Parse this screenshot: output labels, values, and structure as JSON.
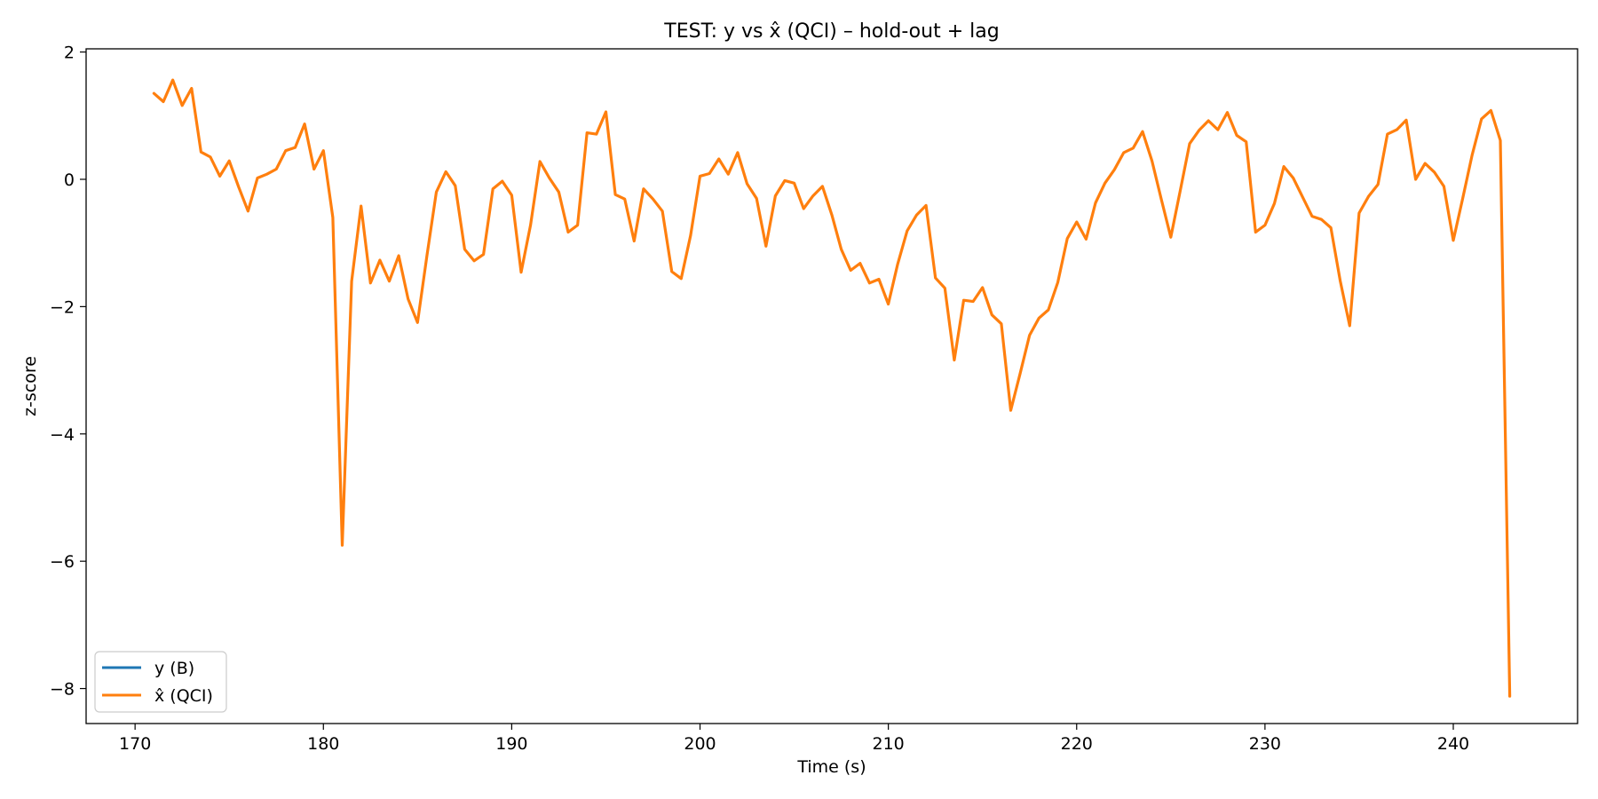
{
  "chart_data": {
    "type": "line",
    "title": "TEST: y vs x̂ (QCI) – hold-out + lag",
    "xlabel": "Time (s)",
    "ylabel": "z-score",
    "xlim": [
      167.4,
      246.6
    ],
    "ylim": [
      -8.55,
      2.05
    ],
    "xticks": [
      170,
      180,
      190,
      200,
      210,
      220,
      230,
      240
    ],
    "yticks": [
      2,
      0,
      -2,
      -4,
      -6,
      -8
    ],
    "xtick_labels": [
      "170",
      "180",
      "190",
      "200",
      "210",
      "220",
      "230",
      "240"
    ],
    "ytick_labels": [
      "2",
      "0",
      "−2",
      "−4",
      "−6",
      "−8"
    ],
    "grid": false,
    "legend": {
      "location": "lower-left",
      "entries": [
        {
          "label": "y (B)",
          "color": "#1f77b4"
        },
        {
          "label": "x̂ (QCI)",
          "color": "#ff7f0e"
        }
      ]
    },
    "x": [
      171.0,
      171.5,
      172.0,
      172.5,
      173.0,
      173.5,
      174.0,
      174.5,
      175.0,
      175.5,
      176.0,
      176.5,
      177.0,
      177.5,
      178.0,
      178.5,
      179.0,
      179.5,
      180.0,
      180.5,
      181.0,
      181.5,
      182.0,
      182.5,
      183.0,
      183.5,
      184.0,
      184.5,
      185.0,
      185.5,
      186.0,
      186.5,
      187.0,
      187.5,
      188.0,
      188.5,
      189.0,
      189.5,
      190.0,
      190.5,
      191.0,
      191.5,
      192.0,
      192.5,
      193.0,
      193.5,
      194.0,
      194.5,
      195.0,
      195.5,
      196.0,
      196.5,
      197.0,
      197.5,
      198.0,
      198.5,
      199.0,
      199.5,
      200.0,
      200.5,
      201.0,
      201.5,
      202.0,
      202.5,
      203.0,
      203.5,
      204.0,
      204.5,
      205.0,
      205.5,
      206.0,
      206.5,
      207.0,
      207.5,
      208.0,
      208.5,
      209.0,
      209.5,
      210.0,
      210.5,
      211.0,
      211.5,
      212.0,
      212.5,
      213.0,
      213.5,
      214.0,
      214.5,
      215.0,
      215.5,
      216.0,
      216.5,
      217.0,
      217.5,
      218.0,
      218.5,
      219.0,
      219.5,
      220.0,
      220.5,
      221.0,
      221.5,
      222.0,
      222.5,
      223.0,
      223.5,
      224.0,
      224.5,
      225.0,
      225.5,
      226.0,
      226.5,
      227.0,
      227.5,
      228.0,
      228.5,
      229.0,
      229.5,
      230.0,
      230.5,
      231.0,
      231.5,
      232.0,
      232.5,
      233.0,
      233.5,
      234.0,
      234.5,
      235.0,
      235.5,
      236.0,
      236.5,
      237.0,
      237.5,
      238.0,
      238.5,
      239.0,
      239.5,
      240.0,
      240.5,
      241.0,
      241.5,
      242.0,
      242.5,
      243.0
    ],
    "series": [
      {
        "name": "y (B)",
        "color": "#1f77b4",
        "values": [
          1.35,
          1.22,
          1.56,
          1.16,
          1.43,
          0.43,
          0.35,
          0.05,
          0.29,
          -0.12,
          -0.5,
          0.02,
          0.08,
          0.16,
          0.45,
          0.5,
          0.87,
          0.16,
          0.45,
          -0.6,
          -5.75,
          -1.6,
          -0.42,
          -1.63,
          -1.27,
          -1.6,
          -1.2,
          -1.88,
          -2.25,
          -1.2,
          -0.2,
          0.12,
          -0.1,
          -1.1,
          -1.28,
          -1.18,
          -0.15,
          -0.03,
          -0.25,
          -1.46,
          -0.72,
          0.28,
          0.02,
          -0.2,
          -0.83,
          -0.72,
          0.73,
          0.71,
          1.06,
          -0.24,
          -0.31,
          -0.97,
          -0.15,
          -0.31,
          -0.5,
          -1.45,
          -1.56,
          -0.88,
          0.05,
          0.09,
          0.32,
          0.08,
          0.42,
          -0.07,
          -0.3,
          -1.05,
          -0.26,
          -0.02,
          -0.06,
          -0.46,
          -0.26,
          -0.11,
          -0.56,
          -1.1,
          -1.43,
          -1.32,
          -1.63,
          -1.57,
          -1.96,
          -1.33,
          -0.81,
          -0.56,
          -0.41,
          -1.55,
          -1.71,
          -2.84,
          -1.9,
          -1.92,
          -1.7,
          -2.13,
          -2.27,
          -3.63,
          -3.05,
          -2.45,
          -2.18,
          -2.05,
          -1.62,
          -0.93,
          -0.67,
          -0.94,
          -0.37,
          -0.06,
          0.15,
          0.42,
          0.49,
          0.75,
          0.29,
          -0.32,
          -0.91,
          -0.18,
          0.56,
          0.77,
          0.92,
          0.78,
          1.05,
          0.69,
          0.59,
          -0.83,
          -0.72,
          -0.38,
          0.2,
          0.02,
          -0.28,
          -0.58,
          -0.63,
          -0.76,
          -1.6,
          -2.3,
          -0.53,
          -0.27,
          -0.08,
          0.71,
          0.78,
          0.93,
          0.0,
          0.25,
          0.11,
          -0.11,
          -0.96,
          -0.3,
          0.38,
          0.95,
          1.08,
          0.61,
          -8.12
        ]
      },
      {
        "name": "x̂ (QCI)",
        "color": "#ff7f0e",
        "values": [
          1.35,
          1.22,
          1.56,
          1.16,
          1.43,
          0.43,
          0.35,
          0.05,
          0.29,
          -0.12,
          -0.5,
          0.02,
          0.08,
          0.16,
          0.45,
          0.5,
          0.87,
          0.16,
          0.45,
          -0.6,
          -5.75,
          -1.6,
          -0.42,
          -1.63,
          -1.27,
          -1.6,
          -1.2,
          -1.88,
          -2.25,
          -1.2,
          -0.2,
          0.12,
          -0.1,
          -1.1,
          -1.28,
          -1.18,
          -0.15,
          -0.03,
          -0.25,
          -1.46,
          -0.72,
          0.28,
          0.02,
          -0.2,
          -0.83,
          -0.72,
          0.73,
          0.71,
          1.06,
          -0.24,
          -0.31,
          -0.97,
          -0.15,
          -0.31,
          -0.5,
          -1.45,
          -1.56,
          -0.88,
          0.05,
          0.09,
          0.32,
          0.08,
          0.42,
          -0.07,
          -0.3,
          -1.05,
          -0.26,
          -0.02,
          -0.06,
          -0.46,
          -0.26,
          -0.11,
          -0.56,
          -1.1,
          -1.43,
          -1.32,
          -1.63,
          -1.57,
          -1.96,
          -1.33,
          -0.81,
          -0.56,
          -0.41,
          -1.55,
          -1.71,
          -2.84,
          -1.9,
          -1.92,
          -1.7,
          -2.13,
          -2.27,
          -3.63,
          -3.05,
          -2.45,
          -2.18,
          -2.05,
          -1.62,
          -0.93,
          -0.67,
          -0.94,
          -0.37,
          -0.06,
          0.15,
          0.42,
          0.49,
          0.75,
          0.29,
          -0.32,
          -0.91,
          -0.18,
          0.56,
          0.77,
          0.92,
          0.78,
          1.05,
          0.69,
          0.59,
          -0.83,
          -0.72,
          -0.38,
          0.2,
          0.02,
          -0.28,
          -0.58,
          -0.63,
          -0.76,
          -1.6,
          -2.3,
          -0.53,
          -0.27,
          -0.08,
          0.71,
          0.78,
          0.93,
          0.0,
          0.25,
          0.11,
          -0.11,
          -0.96,
          -0.3,
          0.38,
          0.95,
          1.08,
          0.61,
          -8.12
        ]
      }
    ]
  }
}
